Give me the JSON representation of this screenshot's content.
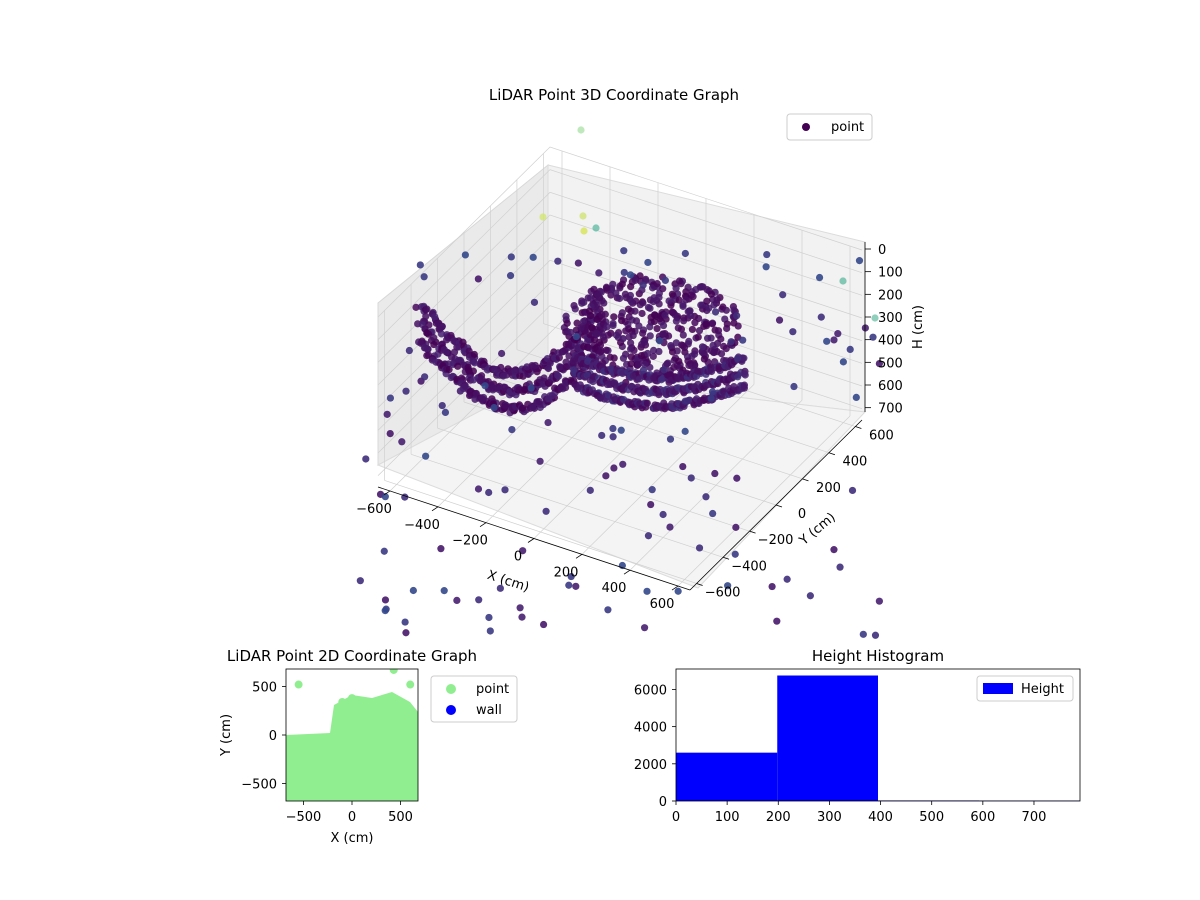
{
  "chart_data": [
    {
      "type": "scatter",
      "subtype": "3d",
      "title": "LiDAR Point 3D Coordinate Graph",
      "xlabel": "X (cm)",
      "ylabel": "Y (cm)",
      "zlabel": "H (cm)",
      "xlim": [
        -650,
        650
      ],
      "ylim": [
        -650,
        650
      ],
      "zlim": [
        750,
        0
      ],
      "xticks": [
        "−600",
        "−400",
        "−200",
        "0",
        "200",
        "400",
        "600"
      ],
      "yticks": [
        "−600",
        "−400",
        "−200",
        "0",
        "200",
        "400",
        "600"
      ],
      "zticks": [
        "0",
        "100",
        "200",
        "300",
        "400",
        "500",
        "600",
        "700"
      ],
      "colormap": "viridis",
      "legend": {
        "placement": "upper-right",
        "entries": [
          "point"
        ]
      },
      "series": [
        {
          "name": "point",
          "color": "#440154"
        }
      ],
      "grid": true
    },
    {
      "type": "scatter",
      "title": "LiDAR Point 2D Coordinate Graph",
      "xlabel": "X (cm)",
      "ylabel": "Y (cm)",
      "xlim": [
        -680,
        680
      ],
      "ylim": [
        -680,
        680
      ],
      "xticks": [
        "−500",
        "0",
        "500"
      ],
      "yticks": [
        "500",
        "0",
        "−500"
      ],
      "legend": {
        "placement": "outside-right",
        "entries": [
          "point",
          "wall"
        ]
      },
      "series": [
        {
          "name": "point",
          "color": "#90ee90"
        },
        {
          "name": "wall",
          "color": "#0000ff"
        }
      ]
    },
    {
      "type": "bar",
      "subtype": "histogram",
      "title": "Height Histogram",
      "xlim": [
        0,
        790
      ],
      "ylim": [
        0,
        7100
      ],
      "xticks": [
        "0",
        "100",
        "200",
        "300",
        "400",
        "500",
        "600",
        "700"
      ],
      "yticks": [
        "0",
        "2000",
        "4000",
        "6000"
      ],
      "bins": [
        {
          "start": 0,
          "end": 198,
          "count": 2600
        },
        {
          "start": 198,
          "end": 395,
          "count": 6750
        },
        {
          "start": 395,
          "end": 593,
          "count": 30
        },
        {
          "start": 593,
          "end": 790,
          "count": 25
        }
      ],
      "legend": {
        "placement": "upper-right",
        "entries": [
          "Height"
        ]
      },
      "series": [
        {
          "name": "Height",
          "color": "#0000ff"
        }
      ]
    }
  ]
}
